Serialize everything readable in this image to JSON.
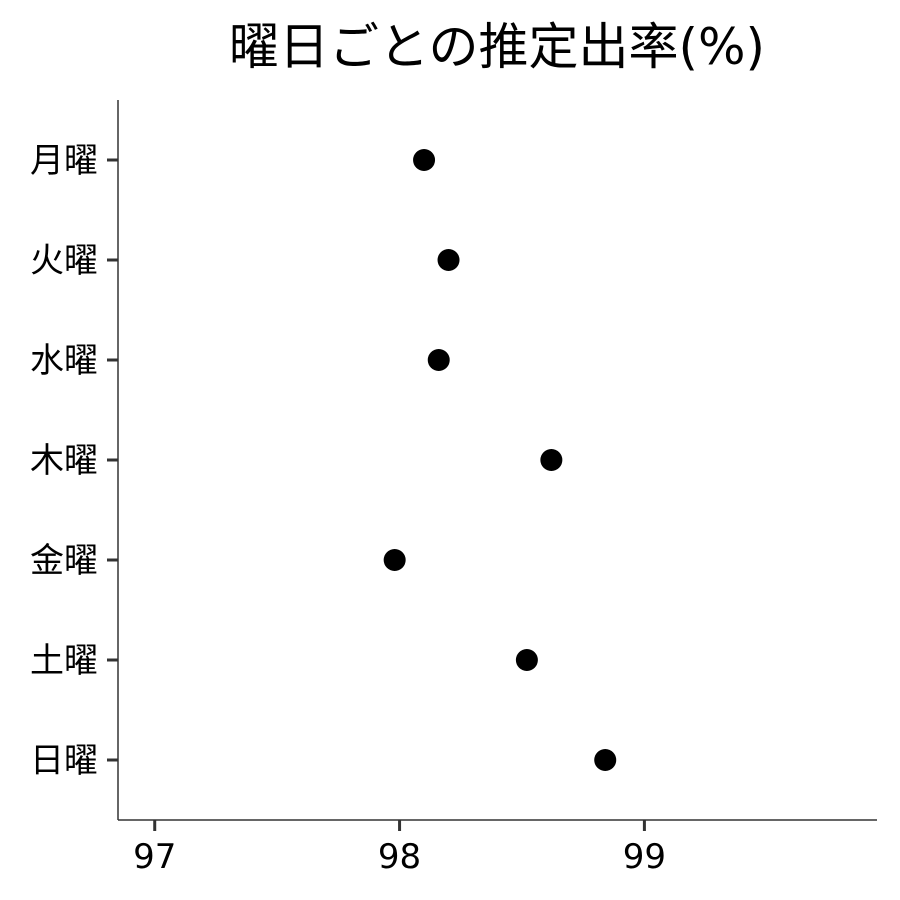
{
  "chart_data": {
    "type": "scatter",
    "title": "曜日ごとの推定出率(%)",
    "xlabel": "",
    "ylabel": "",
    "categories": [
      "月曜",
      "火曜",
      "水曜",
      "木曜",
      "金曜",
      "土曜",
      "日曜"
    ],
    "series": [
      {
        "values": [
          98.1,
          98.2,
          98.16,
          98.62,
          97.98,
          98.52,
          98.84
        ]
      }
    ],
    "xlim": [
      96.85,
      99.95
    ],
    "xticks": [
      "97",
      "98",
      "99"
    ],
    "grid": false,
    "legend": "none",
    "colors": {
      "point": "#000000",
      "axis": "#333333"
    }
  }
}
